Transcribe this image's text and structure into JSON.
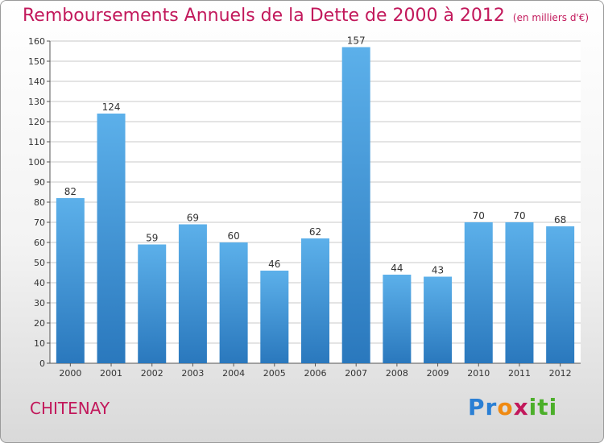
{
  "title": "Remboursements Annuels de la Dette de 2000 à 2012",
  "subtitle": "(en milliers d'€)",
  "commune": "CHITENAY",
  "logo": {
    "letters": [
      "P",
      "r",
      "o",
      "x",
      "i",
      "t",
      "i"
    ],
    "colors": [
      "#2a7fd4",
      "#2a7fd4",
      "#f08a12",
      "#c2185b",
      "#4caf2a",
      "#4caf2a",
      "#4caf2a"
    ]
  },
  "colors": {
    "accent": "#c2185b",
    "bar_top": "#5cb0ea",
    "bar_bottom": "#2a78bd"
  },
  "chart_data": {
    "type": "bar",
    "categories": [
      "2000",
      "2001",
      "2002",
      "2003",
      "2004",
      "2005",
      "2006",
      "2007",
      "2008",
      "2009",
      "2010",
      "2011",
      "2012"
    ],
    "values": [
      82,
      124,
      59,
      69,
      60,
      46,
      62,
      157,
      44,
      43,
      70,
      70,
      68
    ],
    "value_labels": [
      "82",
      "124",
      "59",
      "69",
      "60",
      "46",
      "62",
      "157",
      "44",
      "43",
      "70",
      "70",
      "68"
    ],
    "ylim": [
      0,
      160
    ],
    "yticks": [
      0,
      10,
      20,
      30,
      40,
      50,
      60,
      70,
      80,
      90,
      100,
      110,
      120,
      130,
      140,
      150,
      160
    ],
    "grid": true
  }
}
